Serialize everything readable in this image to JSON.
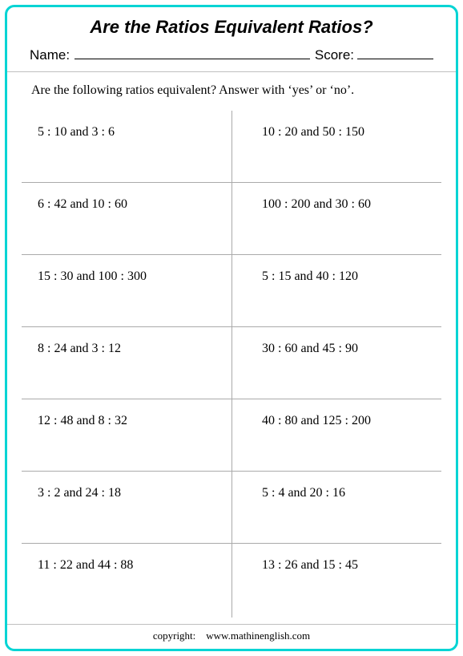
{
  "title": "Are the Ratios Equivalent Ratios?",
  "name_label": "Name:",
  "score_label": "Score:",
  "instructions": "Are the following ratios equivalent?  Answer with ‘yes’ or ‘no’.",
  "rows": [
    {
      "left": "5 : 10  and  3 : 6",
      "right": "10 : 20  and  50 : 150"
    },
    {
      "left": "6 : 42  and  10 : 60",
      "right": "100 : 200  and  30 : 60"
    },
    {
      "left": "15 : 30  and  100 : 300",
      "right": "5 : 15  and  40 : 120"
    },
    {
      "left": "8 : 24  and  3 : 12",
      "right": "30 : 60  and  45 : 90"
    },
    {
      "left": "12 : 48  and  8 : 32",
      "right": "40 : 80  and  125 : 200"
    },
    {
      "left": "3 : 2  and  24 : 18",
      "right": "5 : 4  and  20 : 16"
    },
    {
      "left": "11 : 22   and   44 : 88",
      "right": "13 : 26  and  15 : 45"
    }
  ],
  "footer_label": "copyright:",
  "footer_site": "www.mathinenglish.com",
  "colors": {
    "border": "#00d4d4",
    "grid_line": "#aaaaaa",
    "hr": "#bfbfbf",
    "text": "#000000",
    "background": "#ffffff"
  }
}
